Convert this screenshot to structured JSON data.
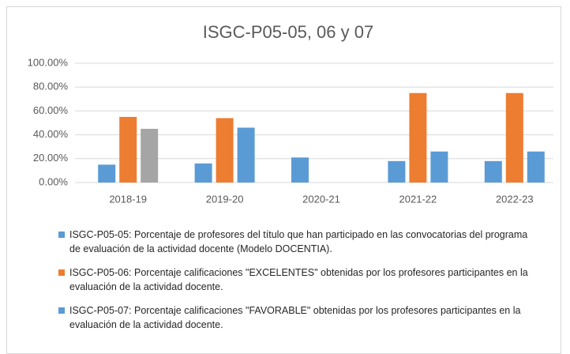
{
  "chart_data": {
    "type": "bar",
    "title": "ISGC-P05-05, 06 y 07",
    "categories": [
      "2018-19",
      "2019-20",
      "2020-21",
      "2021-22",
      "2022-23"
    ],
    "series": [
      {
        "name": "ISGC-P05-05: Porcentaje de profesores del título que han participado en las convocatorias del programa de evaluación de la actividad docente (Modelo DOCENTIA).",
        "color": "#5b9bd5",
        "values": [
          15,
          16,
          21,
          18,
          18
        ]
      },
      {
        "name": "ISGC-P05-06: Porcentaje calificaciones \"EXCELENTES\" obtenidas por los profesores participantes en la evaluación de la actividad docente.",
        "color": "#ed7d31",
        "values": [
          55,
          54,
          null,
          75,
          75
        ]
      },
      {
        "name": "ISGC-P05-07: Porcentaje calificaciones \"FAVORABLE\" obtenidas por los profesores participantes en la evaluación de la actividad docente.",
        "color": "#5b9bd5",
        "colors": [
          "#a5a5a5",
          "#5b9bd5",
          "#5b9bd5",
          "#5b9bd5",
          "#5b9bd5"
        ],
        "values": [
          45,
          46,
          null,
          26,
          26
        ]
      }
    ],
    "ylim": [
      0,
      100
    ],
    "yticks": [
      {
        "value": 0,
        "label": "0.00%"
      },
      {
        "value": 20,
        "label": "20.00%"
      },
      {
        "value": 40,
        "label": "40.00%"
      },
      {
        "value": 60,
        "label": "60.00%"
      },
      {
        "value": 80,
        "label": "80.00%"
      },
      {
        "value": 100,
        "label": "100.00%"
      }
    ],
    "grid": true
  }
}
